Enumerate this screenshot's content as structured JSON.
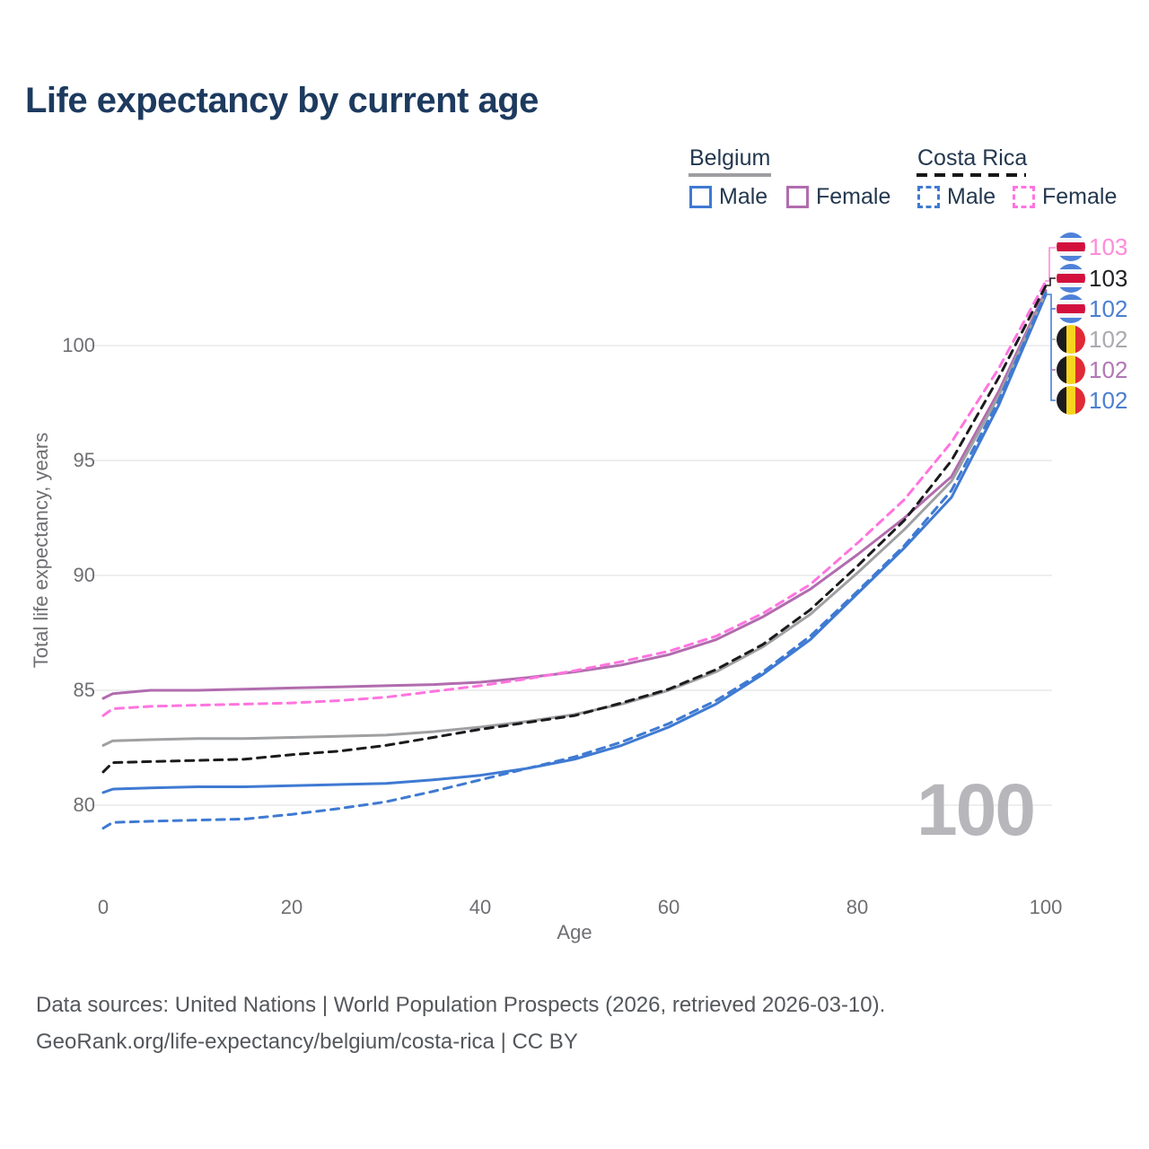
{
  "title": "Life expectancy by current age",
  "legend": {
    "groups": [
      {
        "label": "Belgium",
        "line_style": "solid",
        "underline_color": "#9e9ea1",
        "items": [
          {
            "label": "Male",
            "color": "#3f7ad2"
          },
          {
            "label": "Female",
            "color": "#b16cae"
          }
        ]
      },
      {
        "label": "Costa Rica",
        "line_style": "dashed",
        "underline_color": "#17171a",
        "items": [
          {
            "label": "Male",
            "color": "#3f7ad2"
          },
          {
            "label": "Female",
            "color": "#ff74df"
          }
        ]
      }
    ]
  },
  "axes": {
    "x": {
      "label": "Age",
      "ticks": [
        "0",
        "20",
        "40",
        "60",
        "80",
        "100"
      ]
    },
    "y": {
      "label": "Total life expectancy, years",
      "ticks": [
        "100",
        "95",
        "90",
        "85",
        "80"
      ]
    }
  },
  "watermark": "100",
  "badges": [
    {
      "flag": "costa-rica",
      "value": "103",
      "color": "#ff8ad9"
    },
    {
      "flag": "costa-rica",
      "value": "103",
      "color": "#1f1f23"
    },
    {
      "flag": "costa-rica",
      "value": "102",
      "color": "#4c7fd0"
    },
    {
      "flag": "belgium",
      "value": "102",
      "color": "#a9aaaf"
    },
    {
      "flag": "belgium",
      "value": "102",
      "color": "#b277b4"
    },
    {
      "flag": "belgium",
      "value": "102",
      "color": "#4c7fd0"
    }
  ],
  "footer": {
    "line1": "Data sources: United Nations | World Population Prospects (2026, retrieved 2026-03-10).",
    "line2": "GeoRank.org/life-expectancy/belgium/costa-rica | CC BY"
  },
  "chart_data": {
    "type": "line",
    "title": "Life expectancy by current age",
    "xlabel": "Age",
    "ylabel": "Total life expectancy, years",
    "x_ticks": [
      0,
      20,
      40,
      60,
      80,
      100
    ],
    "y_ticks": [
      100,
      95,
      90,
      85,
      80
    ],
    "xlim": [
      0,
      100
    ],
    "ylim": [
      78.5,
      103.5
    ],
    "grid": "horizontal",
    "legend_position": "top-right",
    "ages": [
      0,
      1,
      5,
      10,
      15,
      20,
      25,
      30,
      35,
      40,
      45,
      50,
      55,
      60,
      65,
      70,
      75,
      80,
      85,
      90,
      95,
      100
    ],
    "series": [
      {
        "name": "Belgium Male",
        "country": "Belgium",
        "sex": "male",
        "color": "#3f7ad2",
        "dash": null,
        "end_label": "102",
        "values": [
          80.55,
          80.7,
          80.75,
          80.8,
          80.8,
          80.85,
          80.9,
          80.95,
          81.1,
          81.3,
          81.6,
          82.0,
          82.6,
          83.4,
          84.4,
          85.7,
          87.2,
          89.2,
          91.2,
          93.4,
          97.4,
          102.2
        ]
      },
      {
        "name": "Belgium Female",
        "country": "Belgium",
        "sex": "female",
        "color": "#b16cae",
        "dash": null,
        "end_label": "102",
        "values": [
          84.65,
          84.85,
          85.0,
          85.0,
          85.05,
          85.1,
          85.15,
          85.2,
          85.25,
          85.35,
          85.55,
          85.8,
          86.1,
          86.55,
          87.2,
          88.2,
          89.4,
          90.9,
          92.5,
          94.3,
          98.0,
          102.4
        ]
      },
      {
        "name": "Belgium (total)",
        "country": "Belgium",
        "sex": "total",
        "color": "#9fa0a2",
        "dash": null,
        "end_label": "102",
        "values": [
          82.6,
          82.8,
          82.85,
          82.9,
          82.9,
          82.95,
          83.0,
          83.05,
          83.2,
          83.4,
          83.65,
          83.95,
          84.4,
          85.0,
          85.8,
          86.9,
          88.3,
          90.1,
          92.0,
          94.1,
          97.8,
          102.3
        ]
      },
      {
        "name": "Costa Rica Male",
        "country": "Costa Rica",
        "sex": "male",
        "color": "#3f7ad2",
        "dash": "9 7",
        "end_label": "102",
        "values": [
          79.0,
          79.25,
          79.3,
          79.35,
          79.4,
          79.6,
          79.85,
          80.15,
          80.6,
          81.1,
          81.6,
          82.1,
          82.75,
          83.55,
          84.55,
          85.8,
          87.35,
          89.3,
          91.3,
          93.7,
          97.6,
          102.3
        ]
      },
      {
        "name": "Costa Rica Female",
        "country": "Costa Rica",
        "sex": "female",
        "color": "#ff74df",
        "dash": "9 7",
        "end_label": "103",
        "values": [
          83.9,
          84.2,
          84.3,
          84.35,
          84.4,
          84.45,
          84.55,
          84.7,
          84.95,
          85.2,
          85.5,
          85.85,
          86.25,
          86.7,
          87.35,
          88.35,
          89.6,
          91.4,
          93.3,
          95.8,
          99.0,
          102.8
        ]
      },
      {
        "name": "Costa Rica (total)",
        "country": "Costa Rica",
        "sex": "total",
        "color": "#1b1b1d",
        "dash": "9 7",
        "end_label": "103",
        "values": [
          81.45,
          81.85,
          81.9,
          81.95,
          82.0,
          82.2,
          82.35,
          82.6,
          82.95,
          83.3,
          83.6,
          83.9,
          84.45,
          85.05,
          85.9,
          87.0,
          88.5,
          90.4,
          92.4,
          95.0,
          98.6,
          102.6
        ]
      }
    ]
  }
}
